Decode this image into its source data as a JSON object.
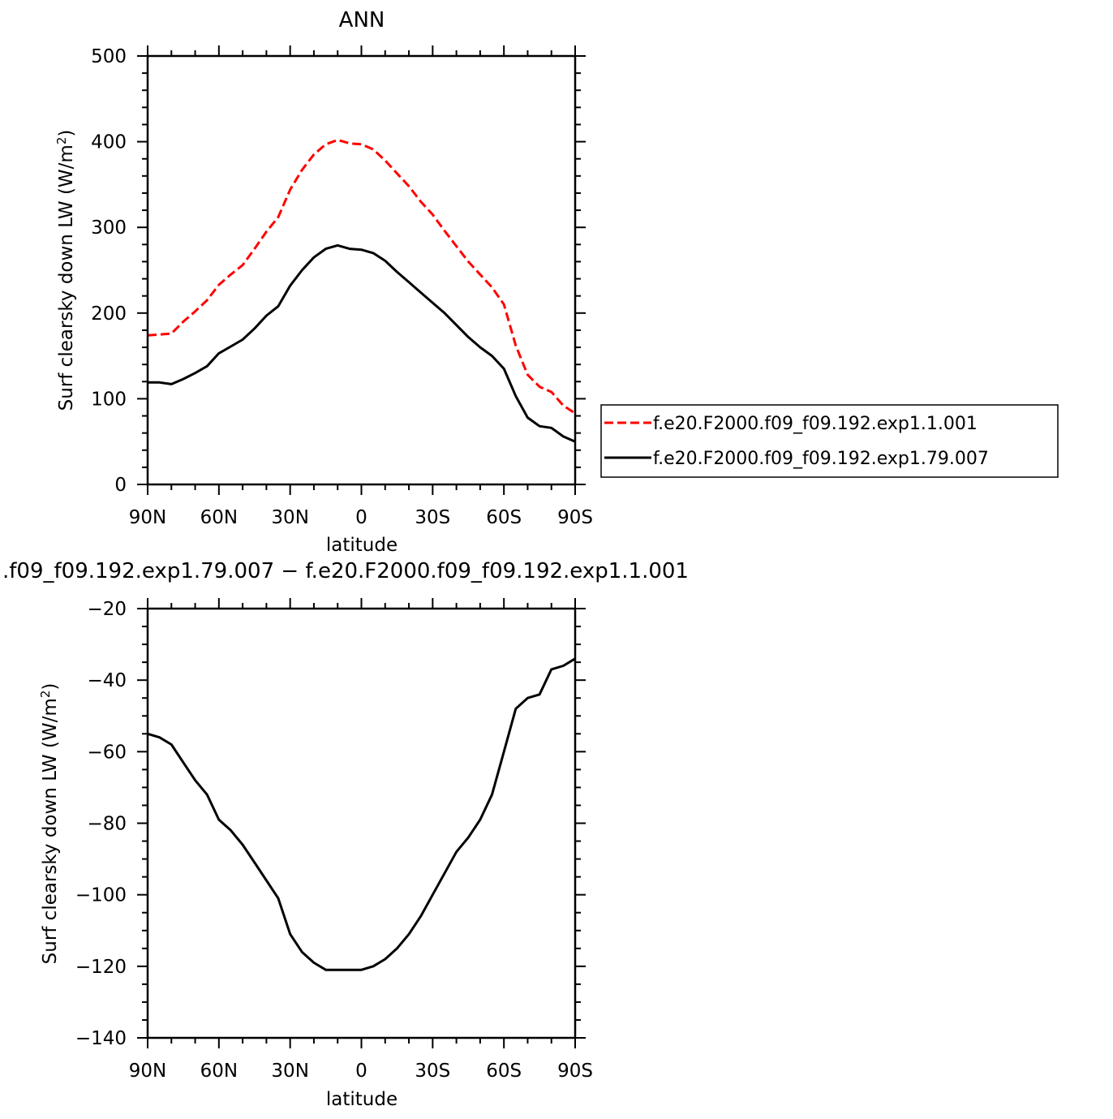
{
  "page": {
    "top_title": "ANN",
    "bottom_title": ".f09_f09.192.exp1.79.007  −  f.e20.F2000.f09_f09.192.exp1.1.001"
  },
  "chart_data": [
    {
      "type": "line",
      "title": "ANN",
      "xlabel": "latitude",
      "ylabel": "Surf clearsky down LW (W/m²)",
      "ylabel_main": "Surf  clearsky  down  LW  (W/m",
      "ylabel_sup": "2",
      "ylabel_close": ")",
      "xlim": [
        90,
        -90
      ],
      "ylim": [
        0,
        500
      ],
      "x_ticks": [
        90,
        60,
        30,
        0,
        -30,
        -60,
        -90
      ],
      "x_tick_labels": [
        "90N",
        "60N",
        "30N",
        "0",
        "30S",
        "60S",
        "90S"
      ],
      "y_ticks": [
        0,
        100,
        200,
        300,
        400,
        500
      ],
      "y_tick_labels": [
        "0",
        "100",
        "200",
        "300",
        "400",
        "500"
      ],
      "grid": false,
      "legend_position": "right",
      "x": [
        90,
        85,
        80,
        75,
        70,
        65,
        60,
        55,
        50,
        45,
        40,
        35,
        30,
        25,
        20,
        15,
        10,
        5,
        0,
        -5,
        -10,
        -15,
        -20,
        -25,
        -30,
        -35,
        -40,
        -45,
        -50,
        -55,
        -60,
        -65,
        -70,
        -75,
        -80,
        -85,
        -90
      ],
      "series": [
        {
          "name": "f.e20.F2000.f09_f09.192.exp1.1.001",
          "color": "#ff0000",
          "dash": "dashed",
          "values": [
            174,
            175,
            176,
            190,
            202,
            215,
            233,
            245,
            256,
            275,
            295,
            312,
            344,
            367,
            385,
            397,
            402,
            398,
            397,
            391,
            378,
            363,
            348,
            330,
            315,
            296,
            278,
            260,
            245,
            230,
            210,
            162,
            128,
            114,
            108,
            92,
            83
          ]
        },
        {
          "name": "f.e20.F2000.f09_f09.192.exp1.79.007",
          "color": "#000000",
          "dash": "solid",
          "values": [
            119,
            119,
            117,
            123,
            130,
            138,
            153,
            161,
            169,
            182,
            197,
            208,
            232,
            250,
            265,
            275,
            279,
            275,
            274,
            270,
            261,
            248,
            236,
            224,
            212,
            200,
            186,
            172,
            160,
            150,
            135,
            103,
            78,
            68,
            66,
            56,
            50
          ]
        }
      ]
    },
    {
      "type": "line",
      "title": ".f09_f09.192.exp1.79.007  −  f.e20.F2000.f09_f09.192.exp1.1.001",
      "xlabel": "latitude",
      "ylabel": "Surf clearsky down LW (W/m²)",
      "ylabel_main": "Surf  clearsky  down  LW  (W/m",
      "ylabel_sup": "2",
      "ylabel_close": ")",
      "xlim": [
        90,
        -90
      ],
      "ylim": [
        -140,
        -20
      ],
      "x_ticks": [
        90,
        60,
        30,
        0,
        -30,
        -60,
        -90
      ],
      "x_tick_labels": [
        "90N",
        "60N",
        "30N",
        "0",
        "30S",
        "60S",
        "90S"
      ],
      "y_ticks": [
        -140,
        -120,
        -100,
        -80,
        -60,
        -40,
        -20
      ],
      "y_tick_labels": [
        "−140",
        "−120",
        "−100",
        "−80",
        "−60",
        "−40",
        "−20"
      ],
      "grid": false,
      "x": [
        90,
        85,
        80,
        75,
        70,
        65,
        60,
        55,
        50,
        45,
        40,
        35,
        30,
        25,
        20,
        15,
        10,
        5,
        0,
        -5,
        -10,
        -15,
        -20,
        -25,
        -30,
        -35,
        -40,
        -45,
        -50,
        -55,
        -60,
        -65,
        -70,
        -75,
        -80,
        -85,
        -90
      ],
      "series": [
        {
          "color": "#000000",
          "dash": "solid",
          "values": [
            -55,
            -56,
            -58,
            -63,
            -68,
            -72,
            -79,
            -82,
            -86,
            -91,
            -96,
            -101,
            -111,
            -116,
            -119,
            -121,
            -121,
            -121,
            -121,
            -120,
            -118,
            -115,
            -111,
            -106,
            -100,
            -94,
            -88,
            -84,
            -79,
            -72,
            -60,
            -48,
            -45,
            -44,
            -37,
            -36,
            -34
          ]
        }
      ]
    }
  ]
}
